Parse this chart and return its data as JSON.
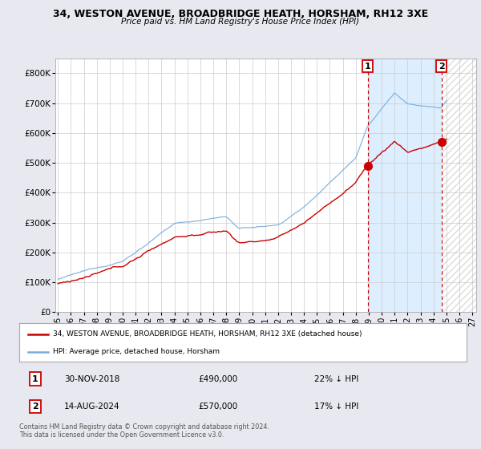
{
  "title": "34, WESTON AVENUE, BROADBRIDGE HEATH, HORSHAM, RH12 3XE",
  "subtitle": "Price paid vs. HM Land Registry's House Price Index (HPI)",
  "legend_line1": "34, WESTON AVENUE, BROADBRIDGE HEATH, HORSHAM, RH12 3XE (detached house)",
  "legend_line2": "HPI: Average price, detached house, Horsham",
  "marker1_date": "30-NOV-2018",
  "marker1_price": "£490,000",
  "marker1_pct": "22% ↓ HPI",
  "marker2_date": "14-AUG-2024",
  "marker2_price": "£570,000",
  "marker2_pct": "17% ↓ HPI",
  "copyright": "Contains HM Land Registry data © Crown copyright and database right 2024.\nThis data is licensed under the Open Government Licence v3.0.",
  "hpi_color": "#7aadda",
  "price_color": "#cc0000",
  "marker_color": "#cc0000",
  "bg_color": "#e8e8f0",
  "plot_bg": "#ffffff",
  "grid_color": "#cccccc",
  "shade_color": "#ddeeff",
  "hatch_color": "#cccccc",
  "ylim": [
    0,
    850000
  ],
  "yticks": [
    0,
    100000,
    200000,
    300000,
    400000,
    500000,
    600000,
    700000,
    800000
  ],
  "ytick_labels": [
    "£0",
    "£100K",
    "£200K",
    "£300K",
    "£400K",
    "£500K",
    "£600K",
    "£700K",
    "£800K"
  ],
  "x_start_year": 1995,
  "x_end_year": 2027,
  "xtick_years": [
    1995,
    1996,
    1997,
    1998,
    1999,
    2000,
    2001,
    2002,
    2003,
    2004,
    2005,
    2006,
    2007,
    2008,
    2009,
    2010,
    2011,
    2012,
    2013,
    2014,
    2015,
    2016,
    2017,
    2018,
    2019,
    2020,
    2021,
    2022,
    2023,
    2024,
    2025,
    2026,
    2027
  ],
  "marker1_x": 2018.92,
  "marker2_x": 2024.62,
  "shade_start": 2018.92,
  "shade_end": 2024.62,
  "hatch_start": 2024.62,
  "hatch_end": 2027.5
}
